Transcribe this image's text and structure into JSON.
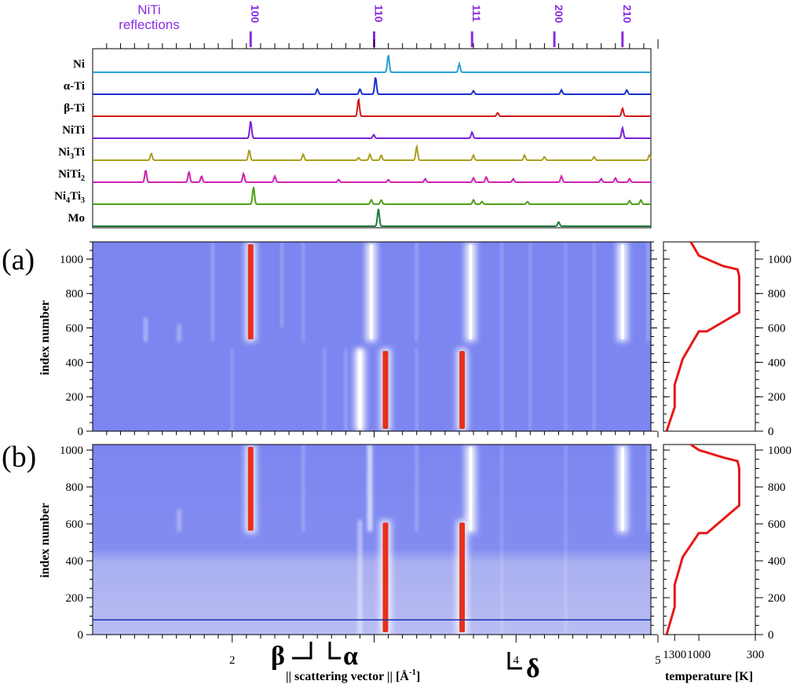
{
  "chart_data": [
    {
      "type": "line",
      "title": "Simulated reference diffraction patterns",
      "niti_reflections": {
        "label_line1": "NiTi",
        "label_line2": "reflections",
        "hkl": [
          "100",
          "110",
          "111",
          "200",
          "210"
        ],
        "positions": [
          2.13,
          3.0,
          3.69,
          4.27,
          4.75
        ]
      },
      "phases": [
        {
          "name": "Ni",
          "label_main": "Ni",
          "label_sub": "",
          "color": "#2a9fd6",
          "peaks": [
            [
              3.1,
              1.0
            ],
            [
              3.6,
              0.5
            ]
          ]
        },
        {
          "name": "α-Ti",
          "label_main": "α-Ti",
          "label_sub": "",
          "color": "#1a2fd0",
          "peaks": [
            [
              2.6,
              0.3
            ],
            [
              2.9,
              0.3
            ],
            [
              3.01,
              1.0
            ],
            [
              3.7,
              0.2
            ],
            [
              4.32,
              0.25
            ],
            [
              4.78,
              0.25
            ]
          ]
        },
        {
          "name": "β-Ti",
          "label_main": "β-Ti",
          "label_sub": "",
          "color": "#d01818",
          "peaks": [
            [
              2.89,
              1.0
            ],
            [
              3.87,
              0.2
            ],
            [
              4.75,
              0.45
            ]
          ]
        },
        {
          "name": "NiTi",
          "label_main": "NiTi",
          "label_sub": "",
          "color": "#7a1fd8",
          "peaks": [
            [
              2.13,
              1.0
            ],
            [
              2.997,
              0.2
            ],
            [
              3.69,
              0.35
            ],
            [
              4.75,
              0.6
            ]
          ]
        },
        {
          "name": "Ni3Ti",
          "label_main": "Ni",
          "label_sub": "3",
          "label_tail": "Ti",
          "color": "#a8a020",
          "peaks": [
            [
              1.42,
              0.4
            ],
            [
              2.12,
              0.6
            ],
            [
              2.5,
              0.35
            ],
            [
              2.89,
              0.15
            ],
            [
              2.97,
              0.35
            ],
            [
              3.05,
              0.3
            ],
            [
              3.3,
              0.8
            ],
            [
              3.7,
              0.3
            ],
            [
              4.06,
              0.3
            ],
            [
              4.2,
              0.2
            ],
            [
              4.55,
              0.2
            ],
            [
              4.94,
              0.3
            ]
          ]
        },
        {
          "name": "NiTi2",
          "label_main": "NiTi",
          "label_sub": "2",
          "color": "#d020b0",
          "peaks": [
            [
              1.38,
              0.7
            ],
            [
              1.69,
              0.6
            ],
            [
              1.78,
              0.35
            ],
            [
              2.08,
              0.5
            ],
            [
              2.3,
              0.35
            ],
            [
              2.75,
              0.15
            ],
            [
              3.1,
              0.15
            ],
            [
              3.36,
              0.2
            ],
            [
              3.7,
              0.25
            ],
            [
              3.79,
              0.3
            ],
            [
              3.98,
              0.2
            ],
            [
              4.32,
              0.35
            ],
            [
              4.6,
              0.2
            ],
            [
              4.7,
              0.25
            ],
            [
              4.8,
              0.2
            ]
          ]
        },
        {
          "name": "Ni4Ti3",
          "label_main": "Ni",
          "label_sub": "4",
          "label_tail": "Ti",
          "label_sub2": "3",
          "color": "#4ea018",
          "peaks": [
            [
              2.15,
              1.0
            ],
            [
              2.98,
              0.25
            ],
            [
              3.05,
              0.25
            ],
            [
              3.7,
              0.25
            ],
            [
              3.76,
              0.15
            ],
            [
              4.08,
              0.15
            ],
            [
              4.8,
              0.2
            ],
            [
              4.88,
              0.25
            ]
          ]
        },
        {
          "name": "Mo",
          "label_main": "Mo",
          "label_sub": "",
          "color": "#1d7a3a",
          "peaks": [
            [
              3.03,
              1.0
            ],
            [
              4.3,
              0.25
            ],
            [
              5.35,
              0.5
            ]
          ]
        }
      ]
    },
    {
      "type": "heatmap",
      "panel_label": "(a)",
      "xlabel": "|| scattering vector || [Å-1]",
      "ylabel": "index number",
      "xlim": [
        1.0,
        5.0
      ],
      "ylim": [
        0,
        1100
      ],
      "xticks": [
        2,
        4,
        5
      ],
      "yticks": [
        0,
        200,
        400,
        600,
        800,
        1000
      ],
      "features": [
        {
          "phase": "NiTi 100",
          "index_range": [
            520,
            1100
          ],
          "q": 2.13,
          "intensity": "high"
        },
        {
          "phase": "NiTi 110",
          "index_range": [
            520,
            1100
          ],
          "q": 2.98,
          "intensity": "low"
        },
        {
          "phase": "NiTi 111",
          "index_range": [
            520,
            1100
          ],
          "q": 3.68,
          "intensity": "low"
        },
        {
          "phase": "NiTi 210",
          "index_range": [
            520,
            1100
          ],
          "q": 4.75,
          "intensity": "low"
        },
        {
          "phase": "β-Ti",
          "index_range": [
            0,
            480
          ],
          "q": 2.9,
          "intensity": "low"
        },
        {
          "phase": "α-Ti",
          "index_range": [
            0,
            480
          ],
          "q": 3.08,
          "intensity": "high"
        },
        {
          "phase": "α-Ti",
          "index_range": [
            0,
            480
          ],
          "q": 3.62,
          "intensity": "high"
        }
      ],
      "temperature": {
        "xlabel": "temperature [K]",
        "xticks": [
          300,
          1000,
          1300
        ],
        "xlim": [
          300,
          1400
        ],
        "profile": [
          [
            1400,
            0
          ],
          [
            1300,
            140
          ],
          [
            1300,
            270
          ],
          [
            1200,
            420
          ],
          [
            1000,
            580
          ],
          [
            900,
            580
          ],
          [
            500,
            690
          ],
          [
            500,
            900
          ],
          [
            520,
            940
          ],
          [
            700,
            960
          ],
          [
            1000,
            1020
          ],
          [
            1100,
            1100
          ]
        ]
      }
    },
    {
      "type": "heatmap",
      "panel_label": "(b)",
      "xlabel": "|| scattering vector || [Å-1]",
      "ylabel": "index number",
      "xlim": [
        1.0,
        5.0
      ],
      "ylim": [
        0,
        1030
      ],
      "xticks": [
        2,
        4,
        5
      ],
      "yticks": [
        0,
        200,
        400,
        600,
        800,
        1000
      ],
      "horizontal_line_index": 80,
      "features": [
        {
          "phase": "NiTi 100",
          "index_range": [
            550,
            1030
          ],
          "q": 2.13,
          "intensity": "high"
        },
        {
          "phase": "NiTi 111",
          "index_range": [
            550,
            1030
          ],
          "q": 3.68,
          "intensity": "low"
        },
        {
          "phase": "NiTi 210",
          "index_range": [
            550,
            1030
          ],
          "q": 4.75,
          "intensity": "low"
        },
        {
          "phase": "α-Ti",
          "index_range": [
            0,
            620
          ],
          "q": 3.08,
          "intensity": "high"
        },
        {
          "phase": "α-Ti",
          "index_range": [
            0,
            620
          ],
          "q": 3.62,
          "intensity": "high"
        }
      ],
      "temperature": {
        "xlabel": "temperature [K]",
        "xticks": [
          300,
          1000,
          1300
        ],
        "xlim": [
          300,
          1400
        ],
        "profile": [
          [
            1400,
            0
          ],
          [
            1300,
            150
          ],
          [
            1300,
            270
          ],
          [
            1200,
            420
          ],
          [
            1000,
            550
          ],
          [
            900,
            550
          ],
          [
            500,
            700
          ],
          [
            500,
            900
          ],
          [
            520,
            940
          ],
          [
            700,
            960
          ],
          [
            1000,
            1000
          ],
          [
            1100,
            1030
          ]
        ]
      }
    }
  ],
  "annotations": {
    "beta": "β",
    "alpha": "α",
    "delta": "δ",
    "x_axis_title_prefix": "|| scattering vector || [Å",
    "x_axis_title_exp": "-1",
    "x_axis_title_suffix": "]",
    "temperature_axis_title": "temperature [K]"
  },
  "colors": {
    "heatmap_background": "#7b86f0",
    "heatmap_background_light": "#aeb4f6",
    "heatmap_hot": "#e8301c",
    "temperature_curve": "#e81818",
    "niti_marker": "#8a2be2"
  }
}
